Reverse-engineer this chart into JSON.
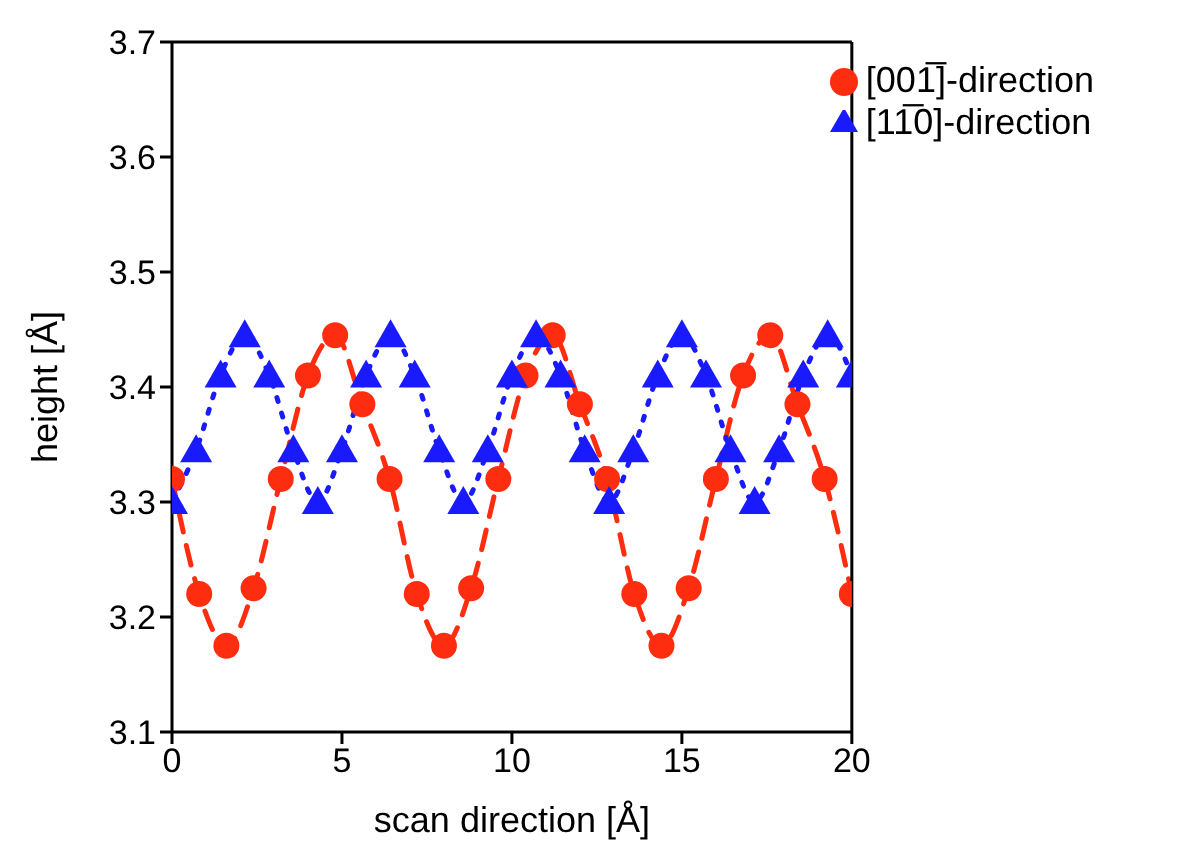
{
  "chart_data": {
    "type": "line",
    "xlabel": "scan direction [Å]",
    "ylabel": "height [Å]",
    "xlim": [
      0,
      20
    ],
    "xticks": [
      0,
      5,
      10,
      15,
      20
    ],
    "ylim": [
      3.1,
      3.7
    ],
    "yticks": [
      3.1,
      3.2,
      3.3,
      3.4,
      3.5,
      3.6,
      3.7
    ],
    "grid": false,
    "legend": "top right",
    "series": [
      {
        "name": "[001̅]-direction",
        "color": "#ff2d10",
        "marker": "circle",
        "line_style": "dashed",
        "x": [
          0,
          0.8,
          1.6,
          2.4,
          3.2,
          4.0,
          4.8,
          5.6,
          6.4,
          7.2,
          8.0,
          8.8,
          9.6,
          10.4,
          11.2,
          12.0,
          12.8,
          13.6,
          14.4,
          15.2,
          16.0,
          16.8,
          17.6,
          18.4,
          19.2,
          20
        ],
        "values": [
          3.32,
          3.22,
          3.175,
          3.225,
          3.32,
          3.41,
          3.445,
          3.385,
          3.32,
          3.22,
          3.175,
          3.225,
          3.32,
          3.41,
          3.445,
          3.385,
          3.32,
          3.22,
          3.175,
          3.225,
          3.32,
          3.41,
          3.445,
          3.385,
          3.32,
          3.22
        ]
      },
      {
        "name": "[11̅0]-direction",
        "color": "#1a1aff",
        "marker": "triangle",
        "line_style": "dotted",
        "x": [
          0,
          0.71,
          1.43,
          2.14,
          2.86,
          3.57,
          4.29,
          5,
          5.71,
          6.43,
          7.14,
          7.86,
          8.57,
          9.29,
          10,
          10.71,
          11.43,
          12.14,
          12.86,
          13.57,
          14.29,
          15,
          15.71,
          16.43,
          17.14,
          17.86,
          18.57,
          19.29,
          20
        ],
        "values": [
          3.3,
          3.345,
          3.41,
          3.445,
          3.41,
          3.345,
          3.3,
          3.345,
          3.41,
          3.445,
          3.41,
          3.345,
          3.3,
          3.345,
          3.41,
          3.445,
          3.41,
          3.345,
          3.3,
          3.345,
          3.41,
          3.445,
          3.41,
          3.345,
          3.3,
          3.345,
          3.41,
          3.445,
          3.41
        ]
      }
    ]
  }
}
